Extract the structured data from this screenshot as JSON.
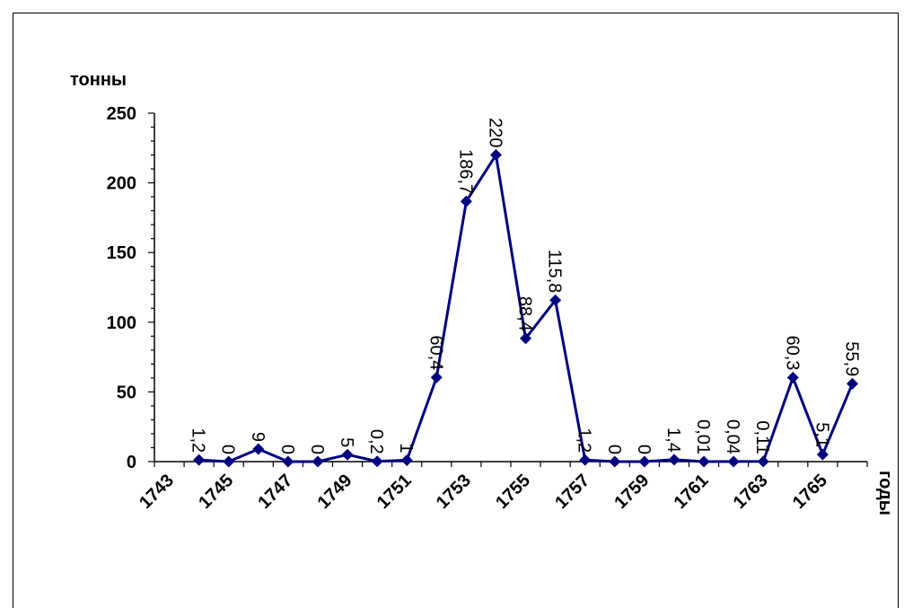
{
  "chart_data": {
    "type": "line",
    "ylabel": "тонны",
    "xlabel": "годы",
    "ylim": [
      0,
      250
    ],
    "yticks": [
      0,
      50,
      100,
      150,
      200,
      250
    ],
    "x_tick_labels": [
      "1743",
      "1745",
      "1747",
      "1749",
      "1751",
      "1753",
      "1755",
      "1757",
      "1759",
      "1761",
      "1763",
      "1765"
    ],
    "grid": false,
    "legend": "none",
    "series": [
      {
        "color": "#000080",
        "x": [
          1744,
          1745,
          1746,
          1747,
          1748,
          1749,
          1750,
          1751,
          1752,
          1753,
          1754,
          1755,
          1756,
          1757,
          1758,
          1759,
          1760,
          1761,
          1762,
          1763,
          1764,
          1765,
          1766
        ],
        "values": [
          1.2,
          0,
          9,
          0,
          0,
          5,
          0.2,
          1,
          60.4,
          186.7,
          220,
          88.4,
          115.8,
          1.2,
          0,
          0,
          1.4,
          0.01,
          0.04,
          0.11,
          60.3,
          5.1,
          55.9
        ],
        "data_labels": [
          "1,2",
          "0",
          "9",
          "0",
          "0",
          "5",
          "0,2",
          "1",
          "60,4",
          "186,7",
          "220",
          "88,4",
          "115,8",
          "1,2",
          "0",
          "0",
          "1,4",
          "0,01",
          "0,04",
          "0,11",
          "60,3",
          "5,1",
          "55,9"
        ]
      }
    ]
  }
}
